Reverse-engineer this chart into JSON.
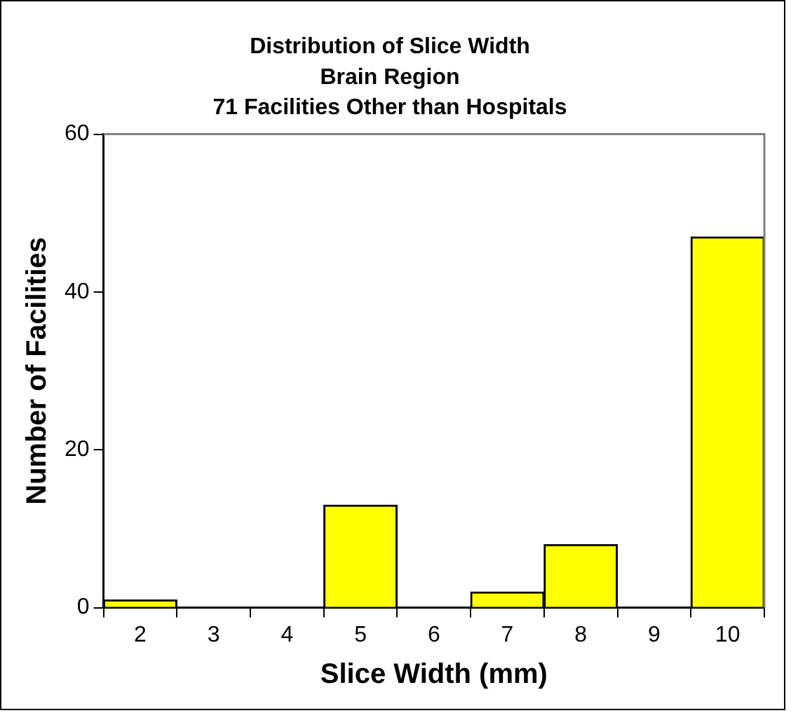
{
  "chart_data": {
    "type": "bar",
    "title": "Distribution of Slice Width\nBrain Region\n71 Facilities Other than Hospitals",
    "xlabel": "Slice Width (mm)",
    "ylabel": "Number of Facilities",
    "categories": [
      "2",
      "3",
      "4",
      "5",
      "6",
      "7",
      "8",
      "9",
      "10"
    ],
    "values": [
      1,
      0,
      0,
      13,
      0,
      2,
      8,
      0,
      47
    ],
    "color": "#ffff00",
    "ylim": [
      0,
      60
    ],
    "yticks": [
      0,
      20,
      40,
      60
    ],
    "grid": false,
    "legend": false
  }
}
